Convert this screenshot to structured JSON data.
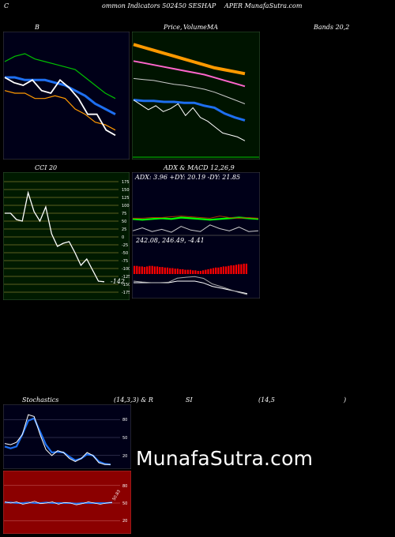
{
  "header": {
    "left": "C",
    "mid": "ommon  Indicators 502450  SESHAP",
    "right": "APER MunafaSutra.com"
  },
  "titles": {
    "b": "B",
    "price_a": "Price,",
    "price_b": "Volume",
    "price_c": "MA",
    "bands": "Bands 20,2",
    "cci": "CCI 20",
    "adx_title": "ADX  & MACD 12,26,9",
    "stoch_a": "Stochastics",
    "stoch_b": "(14,3,3) & R",
    "stoch_c": "SI",
    "stoch_d": "(14,5",
    "stoch_e": ")"
  },
  "adx": {
    "label": "ADX: 3.96  +DY: 20.19 -DY: 21.85"
  },
  "macd": {
    "label": "242.08,  246.49,  -4.41"
  },
  "cci": {
    "current_label": "-142"
  },
  "rsi": {
    "current_label": "50.83"
  },
  "watermark": "MunafaSutra.com",
  "colors": {
    "bb_bg": "#000018",
    "price_bg": "#001400",
    "cci_bg": "#001a00",
    "adx_bg": "#000018",
    "stoch_bg": "#000018",
    "rsi_bg": "#8b0000",
    "price_line": "#ffffff",
    "ma_blue": "#1e6ff0",
    "ma_orange": "#ff9900",
    "ma_green": "#00c000",
    "ma_pink": "#ff66cc",
    "macd_red": "#ff0000"
  },
  "chart_data": [
    {
      "type": "line",
      "id": "bollinger",
      "title": "B",
      "series": [
        {
          "values": [
            106,
            108,
            109,
            107,
            106,
            105,
            104,
            103,
            100,
            97,
            94,
            92
          ]
        },
        {
          "values": [
            100,
            100,
            99,
            99,
            99,
            98,
            97,
            95,
            93,
            90,
            88,
            86
          ]
        },
        {
          "values": [
            95,
            94,
            94,
            92,
            92,
            93,
            92,
            88,
            86,
            83,
            82,
            80
          ]
        },
        {
          "values": [
            100,
            98,
            97,
            99,
            95,
            94,
            99,
            96,
            92,
            86,
            86,
            80,
            78
          ]
        }
      ]
    },
    {
      "type": "line",
      "id": "price_ma",
      "title": "Price, Volume MA",
      "series": [
        {
          "values": [
            175,
            172,
            169,
            166,
            163,
            160,
            157,
            154,
            151,
            149,
            147,
            145
          ]
        },
        {
          "values": [
            158,
            156,
            154,
            152,
            150,
            148,
            146,
            144,
            141,
            138,
            135,
            132
          ]
        },
        {
          "values": [
            140,
            139,
            138,
            136,
            134,
            133,
            131,
            129,
            126,
            122,
            118,
            114
          ]
        },
        {
          "values": [
            118,
            117,
            117,
            116,
            116,
            115,
            115,
            112,
            110,
            104,
            100,
            97
          ]
        },
        {
          "values": [
            118,
            113,
            108,
            112,
            106,
            109,
            114,
            102,
            110,
            100,
            96,
            90,
            84,
            82,
            80,
            76
          ]
        }
      ]
    },
    {
      "type": "line",
      "id": "cci",
      "title": "CCI 20",
      "y_ticks": [
        175,
        150,
        125,
        100,
        75,
        50,
        25,
        0,
        -25,
        -50,
        -75,
        -100,
        -125,
        -150,
        -175
      ],
      "ylim": [
        -175,
        175
      ],
      "values": [
        75,
        75,
        55,
        50,
        140,
        80,
        50,
        95,
        10,
        -30,
        -20,
        -15,
        -50,
        -90,
        -70,
        -105,
        -140,
        -142
      ]
    },
    {
      "type": "line",
      "id": "adx",
      "title": "ADX & MACD 12,26,9",
      "series": [
        {
          "values": [
            20,
            19,
            20,
            21,
            20,
            22,
            21,
            20,
            19,
            20,
            21,
            22,
            21,
            20
          ]
        },
        {
          "values": [
            21,
            21,
            22,
            22,
            23,
            24,
            23,
            22,
            21,
            24,
            22,
            21,
            22,
            21
          ]
        },
        {
          "values": [
            4,
            8,
            3,
            6,
            2,
            10,
            5,
            3,
            12,
            7,
            4,
            9,
            3,
            4
          ]
        }
      ]
    },
    {
      "type": "bar",
      "id": "macd",
      "title": "242.08, 246.49, -4.41",
      "values": [
        9,
        9,
        8,
        8,
        7,
        8,
        9,
        9,
        8,
        8,
        7,
        7,
        6,
        6,
        5,
        5,
        4,
        4,
        3,
        3,
        2,
        2,
        2,
        1,
        1,
        0,
        0,
        -1,
        -2,
        -3,
        -4,
        -5,
        -6,
        -6,
        -7,
        -8,
        -8,
        -9,
        -10,
        -10,
        -11,
        -12,
        -12,
        -13,
        -13
      ]
    },
    {
      "type": "line",
      "id": "stochastic",
      "title": "Stochastics (14,3,3)",
      "y_ticks": [
        80,
        50,
        20
      ],
      "ylim": [
        0,
        100
      ],
      "series": [
        {
          "values": [
            40,
            38,
            42,
            55,
            88,
            85,
            55,
            30,
            20,
            28,
            25,
            15,
            10,
            15,
            25,
            20,
            8,
            5,
            5
          ]
        },
        {
          "values": [
            35,
            32,
            35,
            55,
            78,
            82,
            60,
            38,
            25,
            26,
            25,
            18,
            12,
            15,
            22,
            20,
            10,
            6,
            5
          ]
        }
      ]
    },
    {
      "type": "line",
      "id": "rsi",
      "title": "RSI (14,5)",
      "y_ticks": [
        80,
        50,
        20
      ],
      "ylim": [
        0,
        100
      ],
      "series": [
        {
          "values": [
            52,
            50,
            52,
            48,
            50,
            53,
            49,
            50,
            52,
            48,
            51,
            50,
            47,
            49,
            52,
            50,
            48,
            50,
            51
          ]
        },
        {
          "values": [
            51,
            51,
            50,
            50,
            51,
            50,
            50,
            51,
            50,
            50,
            50,
            50,
            49,
            50,
            50,
            50,
            50,
            50,
            51
          ]
        }
      ]
    }
  ]
}
